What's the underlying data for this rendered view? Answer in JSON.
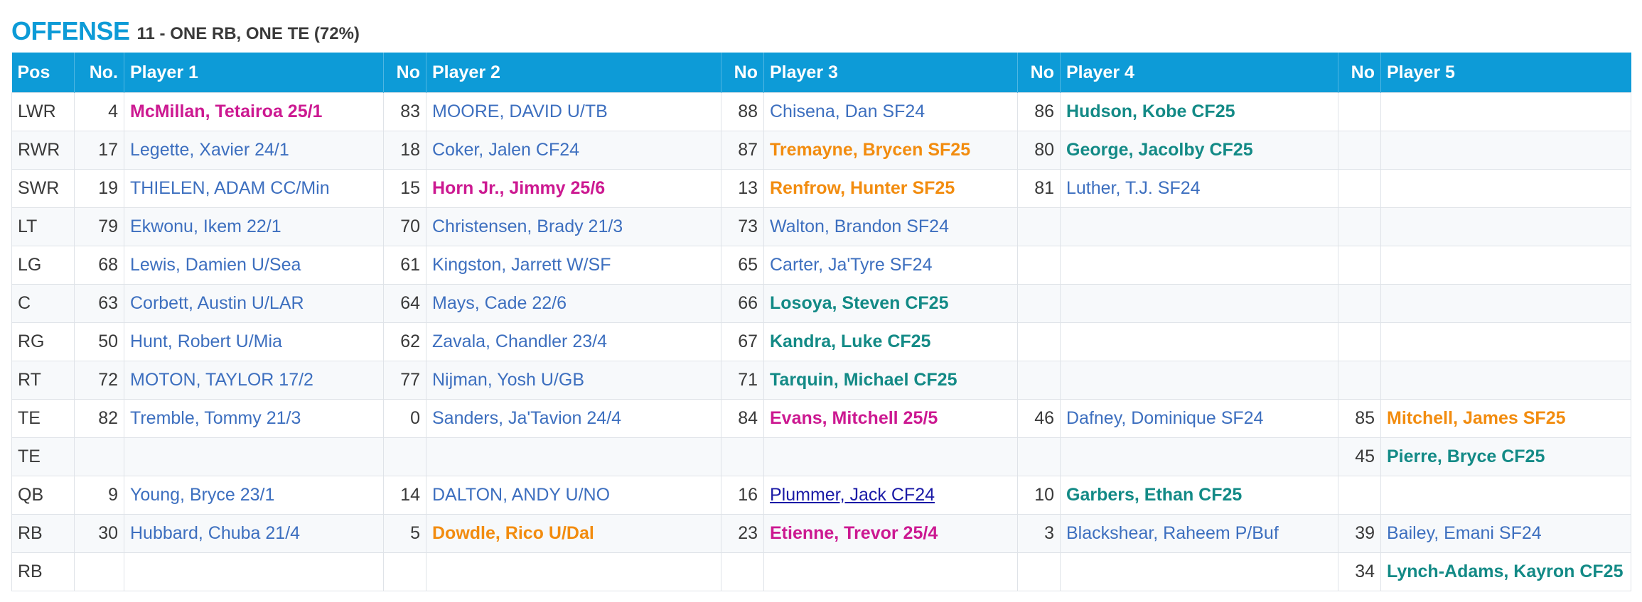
{
  "title": "OFFENSE",
  "subtitle": "11 - ONE RB, ONE TE (72%)",
  "colors": {
    "header_bg": "#0d9bd7",
    "plain": "#3d6fbf",
    "magenta": "#cc1991",
    "orange": "#f28c0f",
    "teal": "#138a86"
  },
  "headers": [
    "Pos",
    "No.",
    "Player 1",
    "No",
    "Player 2",
    "No",
    "Player 3",
    "No",
    "Player 4",
    "No",
    "Player 5"
  ],
  "rows": [
    {
      "pos": "LWR",
      "players": [
        {
          "no": "4",
          "name": "McMillan, Tetairoa 25/1",
          "style": "magenta"
        },
        {
          "no": "83",
          "name": "MOORE, DAVID U/TB",
          "style": "plain"
        },
        {
          "no": "88",
          "name": "Chisena, Dan SF24",
          "style": "plain"
        },
        {
          "no": "86",
          "name": "Hudson, Kobe CF25",
          "style": "teal"
        },
        {
          "no": "",
          "name": "",
          "style": "plain"
        }
      ]
    },
    {
      "pos": "RWR",
      "players": [
        {
          "no": "17",
          "name": "Legette, Xavier 24/1",
          "style": "plain"
        },
        {
          "no": "18",
          "name": "Coker, Jalen CF24",
          "style": "plain"
        },
        {
          "no": "87",
          "name": "Tremayne, Brycen SF25",
          "style": "orange"
        },
        {
          "no": "80",
          "name": "George, Jacolby CF25",
          "style": "teal"
        },
        {
          "no": "",
          "name": "",
          "style": "plain"
        }
      ]
    },
    {
      "pos": "SWR",
      "players": [
        {
          "no": "19",
          "name": "THIELEN, ADAM CC/Min",
          "style": "plain"
        },
        {
          "no": "15",
          "name": "Horn Jr., Jimmy 25/6",
          "style": "magenta"
        },
        {
          "no": "13",
          "name": "Renfrow, Hunter SF25",
          "style": "orange"
        },
        {
          "no": "81",
          "name": "Luther, T.J. SF24",
          "style": "plain"
        },
        {
          "no": "",
          "name": "",
          "style": "plain"
        }
      ]
    },
    {
      "pos": "LT",
      "players": [
        {
          "no": "79",
          "name": "Ekwonu, Ikem 22/1",
          "style": "plain"
        },
        {
          "no": "70",
          "name": "Christensen, Brady 21/3",
          "style": "plain"
        },
        {
          "no": "73",
          "name": "Walton, Brandon SF24",
          "style": "plain"
        },
        {
          "no": "",
          "name": "",
          "style": "plain"
        },
        {
          "no": "",
          "name": "",
          "style": "plain"
        }
      ]
    },
    {
      "pos": "LG",
      "players": [
        {
          "no": "68",
          "name": "Lewis, Damien U/Sea",
          "style": "plain"
        },
        {
          "no": "61",
          "name": "Kingston, Jarrett W/SF",
          "style": "plain"
        },
        {
          "no": "65",
          "name": "Carter, Ja'Tyre SF24",
          "style": "plain"
        },
        {
          "no": "",
          "name": "",
          "style": "plain"
        },
        {
          "no": "",
          "name": "",
          "style": "plain"
        }
      ]
    },
    {
      "pos": "C",
      "players": [
        {
          "no": "63",
          "name": "Corbett, Austin U/LAR",
          "style": "plain"
        },
        {
          "no": "64",
          "name": "Mays, Cade 22/6",
          "style": "plain"
        },
        {
          "no": "66",
          "name": "Losoya, Steven CF25",
          "style": "teal"
        },
        {
          "no": "",
          "name": "",
          "style": "plain"
        },
        {
          "no": "",
          "name": "",
          "style": "plain"
        }
      ]
    },
    {
      "pos": "RG",
      "players": [
        {
          "no": "50",
          "name": "Hunt, Robert U/Mia",
          "style": "plain"
        },
        {
          "no": "62",
          "name": "Zavala, Chandler 23/4",
          "style": "plain"
        },
        {
          "no": "67",
          "name": "Kandra, Luke CF25",
          "style": "teal"
        },
        {
          "no": "",
          "name": "",
          "style": "plain"
        },
        {
          "no": "",
          "name": "",
          "style": "plain"
        }
      ]
    },
    {
      "pos": "RT",
      "players": [
        {
          "no": "72",
          "name": "MOTON, TAYLOR 17/2",
          "style": "plain"
        },
        {
          "no": "77",
          "name": "Nijman, Yosh U/GB",
          "style": "plain"
        },
        {
          "no": "71",
          "name": "Tarquin, Michael CF25",
          "style": "teal"
        },
        {
          "no": "",
          "name": "",
          "style": "plain"
        },
        {
          "no": "",
          "name": "",
          "style": "plain"
        }
      ]
    },
    {
      "pos": "TE",
      "players": [
        {
          "no": "82",
          "name": "Tremble, Tommy 21/3",
          "style": "plain"
        },
        {
          "no": "0",
          "name": "Sanders, Ja'Tavion 24/4",
          "style": "plain"
        },
        {
          "no": "84",
          "name": "Evans, Mitchell 25/5",
          "style": "magenta"
        },
        {
          "no": "46",
          "name": "Dafney, Dominique SF24",
          "style": "plain"
        },
        {
          "no": "85",
          "name": "Mitchell, James SF25",
          "style": "orange"
        }
      ]
    },
    {
      "pos": "TE",
      "players": [
        {
          "no": "",
          "name": "",
          "style": "plain"
        },
        {
          "no": "",
          "name": "",
          "style": "plain"
        },
        {
          "no": "",
          "name": "",
          "style": "plain"
        },
        {
          "no": "",
          "name": "",
          "style": "plain"
        },
        {
          "no": "45",
          "name": "Pierre, Bryce CF25",
          "style": "teal"
        }
      ]
    },
    {
      "pos": "QB",
      "players": [
        {
          "no": "9",
          "name": "Young, Bryce 23/1",
          "style": "plain"
        },
        {
          "no": "14",
          "name": "DALTON, ANDY U/NO",
          "style": "plain"
        },
        {
          "no": "16",
          "name": "Plummer, Jack CF24",
          "style": "link"
        },
        {
          "no": "10",
          "name": "Garbers, Ethan CF25",
          "style": "teal"
        },
        {
          "no": "",
          "name": "",
          "style": "plain"
        }
      ]
    },
    {
      "pos": "RB",
      "players": [
        {
          "no": "30",
          "name": "Hubbard, Chuba 21/4",
          "style": "plain"
        },
        {
          "no": "5",
          "name": "Dowdle, Rico U/Dal",
          "style": "orange"
        },
        {
          "no": "23",
          "name": "Etienne, Trevor 25/4",
          "style": "magenta"
        },
        {
          "no": "3",
          "name": "Blackshear, Raheem P/Buf",
          "style": "plain"
        },
        {
          "no": "39",
          "name": "Bailey, Emani SF24",
          "style": "plain"
        }
      ]
    },
    {
      "pos": "RB",
      "players": [
        {
          "no": "",
          "name": "",
          "style": "plain"
        },
        {
          "no": "",
          "name": "",
          "style": "plain"
        },
        {
          "no": "",
          "name": "",
          "style": "plain"
        },
        {
          "no": "",
          "name": "",
          "style": "plain"
        },
        {
          "no": "34",
          "name": "Lynch-Adams, Kayron CF25",
          "style": "teal"
        }
      ]
    }
  ]
}
